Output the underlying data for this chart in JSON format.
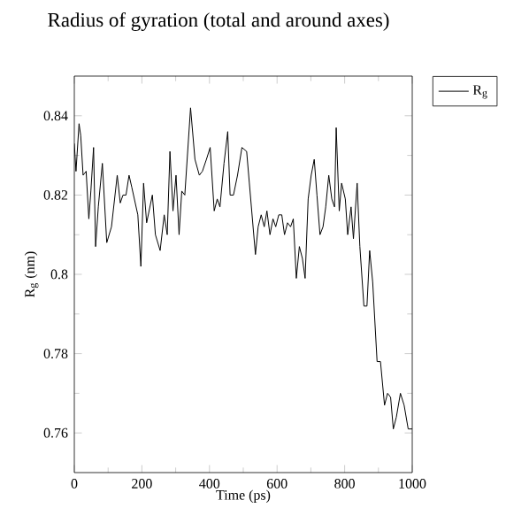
{
  "chart_data": {
    "type": "line",
    "title": "Radius of gyration (total and around axes)",
    "xlabel": "Time (ps)",
    "ylabel": "R$_{g}$ (nm)",
    "xlim": [
      0,
      1000
    ],
    "xticks": [
      0,
      200,
      400,
      600,
      800,
      1000
    ],
    "ylim": [
      0.75,
      0.85
    ],
    "yticks": [
      0.76,
      0.78,
      0.8,
      0.82,
      0.84
    ],
    "legend": "top right",
    "grid": false,
    "marker": "none",
    "line_style": "solid",
    "series": [
      {
        "name": "R$_{g}$",
        "color": "#000000",
        "x": [
          0,
          5,
          14,
          19,
          26,
          35,
          43,
          49,
          57,
          63,
          71,
          83,
          96,
          110,
          127,
          136,
          144,
          153,
          162,
          170,
          188,
          197,
          205,
          214,
          231,
          240,
          254,
          266,
          275,
          283,
          292,
          301,
          310,
          318,
          327,
          344,
          357,
          370,
          379,
          391,
          402,
          414,
          423,
          431,
          443,
          454,
          461,
          471,
          483,
          496,
          510,
          518,
          536,
          544,
          553,
          562,
          570,
          579,
          588,
          596,
          605,
          614,
          622,
          631,
          640,
          648,
          657,
          666,
          675,
          683,
          692,
          701,
          710,
          718,
          727,
          736,
          744,
          753,
          762,
          770,
          775,
          784,
          791,
          802,
          809,
          819,
          826,
          837,
          845,
          857,
          866,
          874,
          883,
          896,
          906,
          918,
          927,
          936,
          944,
          953,
          965,
          976,
          988,
          1000
        ],
        "values": [
          0.833,
          0.826,
          0.838,
          0.835,
          0.825,
          0.826,
          0.814,
          0.821,
          0.832,
          0.807,
          0.817,
          0.828,
          0.808,
          0.812,
          0.825,
          0.818,
          0.82,
          0.82,
          0.825,
          0.822,
          0.815,
          0.802,
          0.823,
          0.813,
          0.82,
          0.81,
          0.806,
          0.815,
          0.81,
          0.831,
          0.816,
          0.825,
          0.81,
          0.821,
          0.82,
          0.842,
          0.829,
          0.825,
          0.826,
          0.829,
          0.832,
          0.816,
          0.819,
          0.817,
          0.828,
          0.836,
          0.82,
          0.82,
          0.825,
          0.832,
          0.831,
          0.823,
          0.805,
          0.812,
          0.815,
          0.812,
          0.816,
          0.81,
          0.814,
          0.812,
          0.815,
          0.815,
          0.81,
          0.813,
          0.812,
          0.814,
          0.799,
          0.807,
          0.804,
          0.799,
          0.819,
          0.825,
          0.829,
          0.82,
          0.81,
          0.812,
          0.817,
          0.825,
          0.819,
          0.817,
          0.837,
          0.816,
          0.823,
          0.819,
          0.81,
          0.817,
          0.809,
          0.823,
          0.807,
          0.792,
          0.792,
          0.806,
          0.798,
          0.778,
          0.778,
          0.767,
          0.77,
          0.769,
          0.761,
          0.764,
          0.77,
          0.767,
          0.761,
          0.761
        ]
      }
    ]
  }
}
